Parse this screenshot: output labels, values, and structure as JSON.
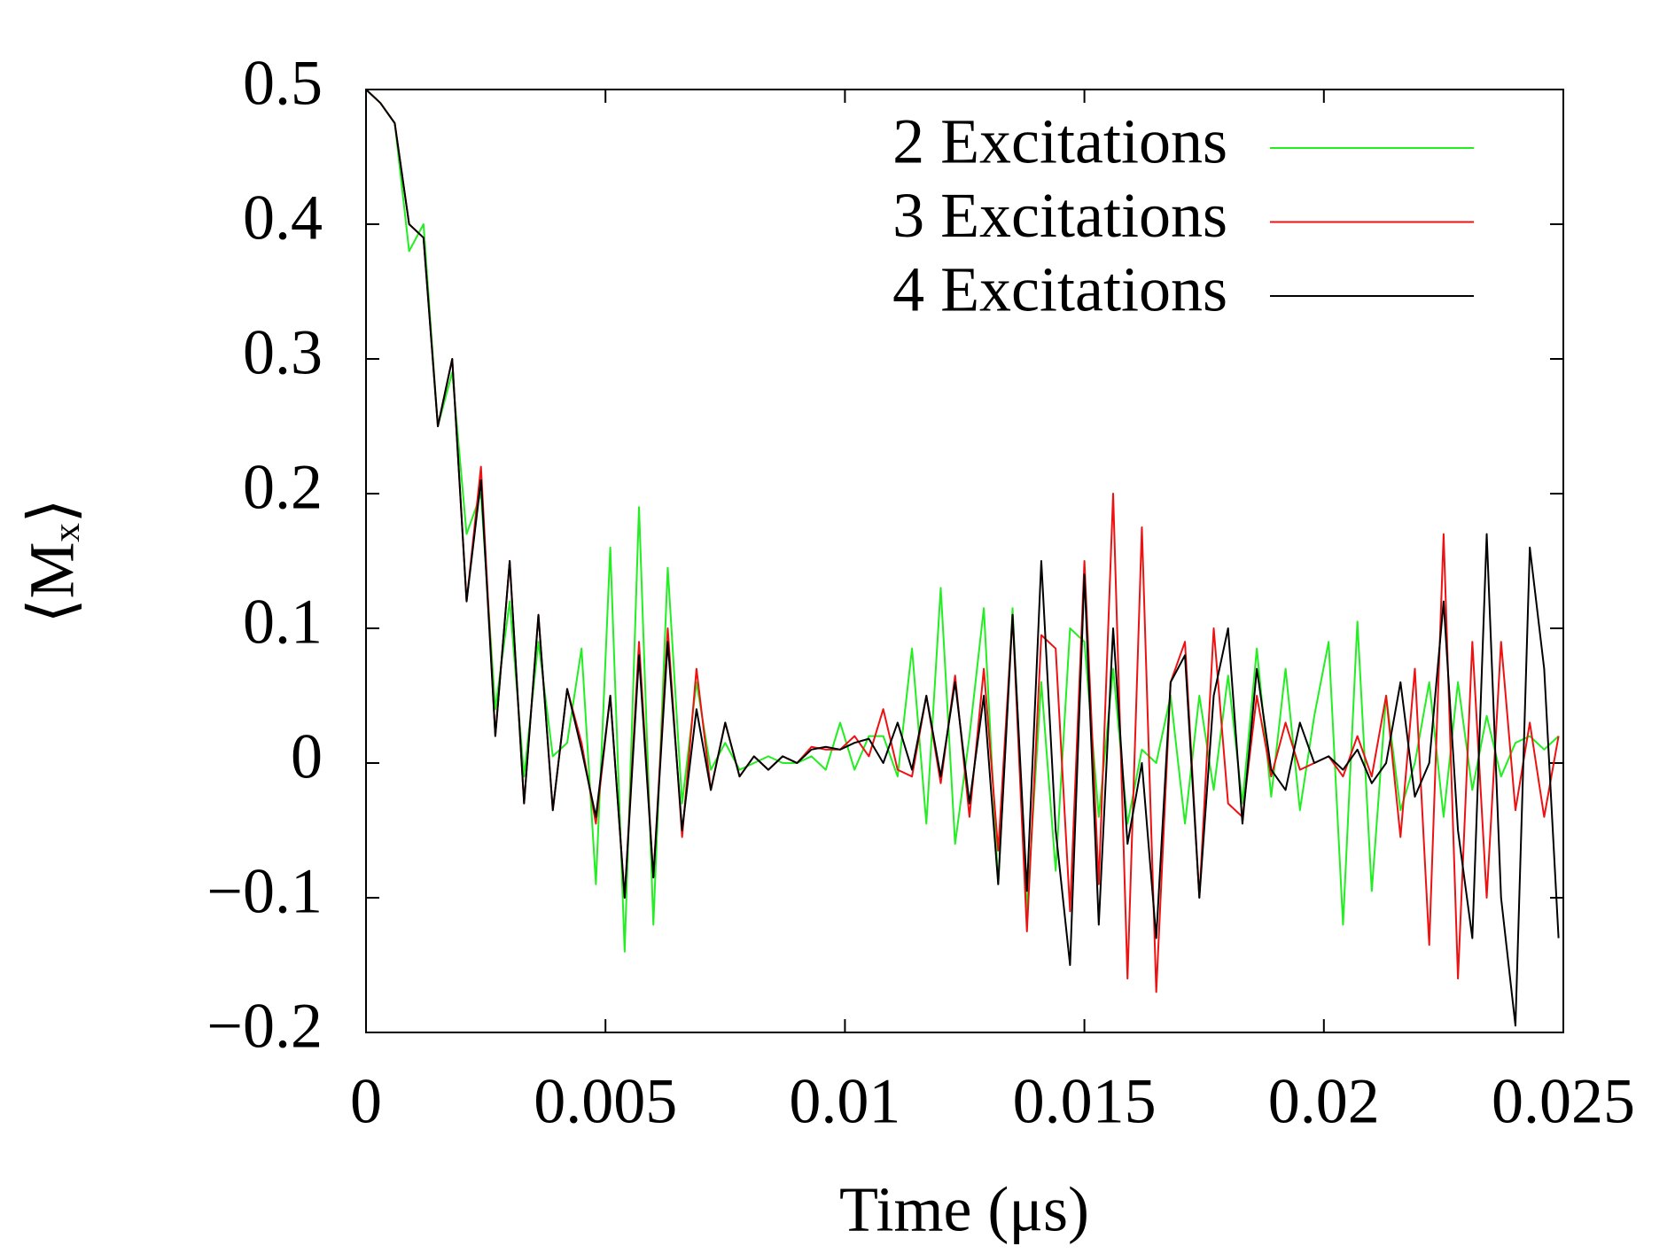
{
  "chart_data": {
    "type": "line",
    "xlabel": "Time (μs)",
    "ylabel": "⟨Mₓ⟩",
    "xlim": [
      0,
      0.025
    ],
    "ylim": [
      -0.2,
      0.5
    ],
    "xticks": [
      0,
      0.005,
      0.01,
      0.015,
      0.02,
      0.025
    ],
    "yticks": [
      {
        "value": -0.2,
        "label": "−0.2"
      },
      {
        "value": -0.1,
        "label": "−0.1"
      },
      0,
      0.1,
      0.2,
      0.3,
      0.4,
      0.5
    ],
    "grid": false,
    "legend": "upper right",
    "x": [
      0,
      0.0003,
      0.0006,
      0.0009,
      0.0012,
      0.0015,
      0.0018,
      0.0021,
      0.0024,
      0.0027,
      0.003,
      0.0033,
      0.0036,
      0.0039,
      0.0042,
      0.0045,
      0.0048,
      0.0051,
      0.0054,
      0.0057,
      0.006,
      0.0063,
      0.0066,
      0.0069,
      0.0072,
      0.0075,
      0.0078,
      0.0081,
      0.0084,
      0.0087,
      0.009,
      0.0093,
      0.0096,
      0.0099,
      0.0102,
      0.0105,
      0.0108,
      0.0111,
      0.0114,
      0.0117,
      0.012,
      0.0123,
      0.0126,
      0.0129,
      0.0132,
      0.0135,
      0.0138,
      0.0141,
      0.0144,
      0.0147,
      0.015,
      0.0153,
      0.0156,
      0.0159,
      0.0162,
      0.0165,
      0.0168,
      0.0171,
      0.0174,
      0.0177,
      0.018,
      0.0183,
      0.0186,
      0.0189,
      0.0192,
      0.0195,
      0.0198,
      0.0201,
      0.0204,
      0.0207,
      0.021,
      0.0213,
      0.0216,
      0.0219,
      0.0222,
      0.0225,
      0.0228,
      0.0231,
      0.0234,
      0.0237,
      0.024,
      0.0243,
      0.0246,
      0.0249
    ],
    "series": [
      {
        "name": "2 Excitations",
        "color": "#22ee22",
        "values": [
          0.5,
          0.49,
          0.475,
          0.38,
          0.4,
          0.25,
          0.29,
          0.17,
          0.2,
          0.04,
          0.12,
          -0.01,
          0.09,
          0.005,
          0.015,
          0.085,
          -0.09,
          0.16,
          -0.14,
          0.19,
          -0.12,
          0.145,
          -0.03,
          0.06,
          -0.005,
          0.015,
          -0.005,
          0,
          0.005,
          0,
          0,
          0.005,
          -0.005,
          0.03,
          -0.005,
          0.02,
          0.02,
          -0.01,
          0.085,
          -0.045,
          0.13,
          -0.06,
          0.02,
          0.115,
          -0.09,
          0.115,
          -0.11,
          0.06,
          -0.08,
          0.1,
          0.09,
          -0.04,
          0.07,
          -0.045,
          0.01,
          0,
          0.05,
          -0.045,
          0.05,
          -0.02,
          0.065,
          -0.03,
          0.085,
          -0.025,
          0.07,
          -0.035,
          0.035,
          0.09,
          -0.12,
          0.105,
          -0.095,
          0.05,
          -0.035,
          0,
          0.06,
          -0.04,
          0.06,
          -0.02,
          0.035,
          -0.01,
          0.015,
          0.02,
          0.01,
          0.02
        ]
      },
      {
        "name": "3 Excitations",
        "color": "#ee1111",
        "values": [
          0.5,
          0.49,
          0.475,
          0.4,
          0.39,
          0.25,
          0.3,
          0.12,
          0.22,
          0.02,
          0.15,
          -0.03,
          0.11,
          -0.035,
          0.055,
          0.015,
          -0.045,
          0.05,
          -0.1,
          0.09,
          -0.085,
          0.1,
          -0.055,
          0.07,
          -0.02,
          0.03,
          -0.01,
          0.005,
          -0.005,
          0.005,
          0,
          0.012,
          0.01,
          0.01,
          0.02,
          0.005,
          0.04,
          -0.005,
          -0.01,
          0.05,
          -0.015,
          0.065,
          -0.04,
          0.07,
          -0.065,
          0.11,
          -0.125,
          0.095,
          0.085,
          -0.11,
          0.15,
          -0.09,
          0.2,
          -0.16,
          0.175,
          -0.17,
          0.06,
          0.09,
          -0.1,
          0.1,
          -0.03,
          -0.04,
          0.05,
          -0.01,
          0.03,
          -0.005,
          0,
          0.005,
          -0.01,
          0.02,
          -0.01,
          0.05,
          -0.055,
          0.07,
          -0.135,
          0.17,
          -0.16,
          0.09,
          -0.1,
          0.09,
          -0.035,
          0.03,
          -0.04,
          0.02
        ]
      },
      {
        "name": "4 Excitations",
        "color": "#000000",
        "values": [
          0.5,
          0.49,
          0.475,
          0.4,
          0.39,
          0.25,
          0.3,
          0.12,
          0.21,
          0.02,
          0.15,
          -0.03,
          0.11,
          -0.035,
          0.055,
          0.01,
          -0.04,
          0.05,
          -0.1,
          0.08,
          -0.085,
          0.09,
          -0.05,
          0.04,
          -0.02,
          0.03,
          -0.01,
          0.005,
          -0.005,
          0.005,
          0,
          0.01,
          0.012,
          0.01,
          0.015,
          0.018,
          0,
          0.03,
          -0.005,
          0.05,
          -0.01,
          0.06,
          -0.03,
          0.05,
          -0.09,
          0.11,
          -0.095,
          0.15,
          -0.05,
          -0.15,
          0.14,
          -0.12,
          0.1,
          -0.06,
          0,
          -0.13,
          0.06,
          0.08,
          -0.1,
          0.05,
          0.1,
          -0.045,
          0.07,
          -0.005,
          -0.02,
          0.03,
          0,
          0.005,
          -0.005,
          0.01,
          -0.015,
          0,
          0.06,
          -0.025,
          0,
          0.12,
          -0.05,
          -0.13,
          0.17,
          -0.1,
          -0.195,
          0.16,
          0.07,
          -0.13
        ]
      }
    ]
  }
}
